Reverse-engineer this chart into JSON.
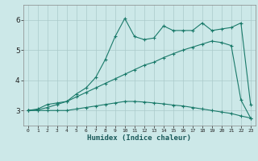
{
  "xlabel": "Humidex (Indice chaleur)",
  "bg_color": "#cce8e8",
  "line_color": "#1a7a6a",
  "grid_color": "#aacaca",
  "xlim": [
    -0.5,
    23.5
  ],
  "ylim": [
    2.5,
    6.5
  ],
  "yticks": [
    3,
    4,
    5,
    6
  ],
  "xticks": [
    0,
    1,
    2,
    3,
    4,
    5,
    6,
    7,
    8,
    9,
    10,
    11,
    12,
    13,
    14,
    15,
    16,
    17,
    18,
    19,
    20,
    21,
    22,
    23
  ],
  "series1_x": [
    0,
    1,
    2,
    3,
    4,
    5,
    6,
    7,
    8,
    9,
    10,
    11,
    12,
    13,
    14,
    15,
    16,
    17,
    18,
    19,
    20,
    21,
    22,
    23
  ],
  "series1_y": [
    3.0,
    3.05,
    3.2,
    3.25,
    3.3,
    3.55,
    3.75,
    4.1,
    4.7,
    5.45,
    6.05,
    5.45,
    5.35,
    5.4,
    5.8,
    5.65,
    5.65,
    5.65,
    5.9,
    5.65,
    5.7,
    5.75,
    5.9,
    3.2
  ],
  "series2_x": [
    0,
    1,
    2,
    3,
    4,
    5,
    6,
    7,
    8,
    9,
    10,
    11,
    12,
    13,
    14,
    15,
    16,
    17,
    18,
    19,
    20,
    21,
    22,
    23
  ],
  "series2_y": [
    3.0,
    3.02,
    3.1,
    3.2,
    3.3,
    3.45,
    3.6,
    3.75,
    3.9,
    4.05,
    4.2,
    4.35,
    4.5,
    4.6,
    4.75,
    4.88,
    5.0,
    5.1,
    5.2,
    5.3,
    5.25,
    5.15,
    3.35,
    2.75
  ],
  "series3_x": [
    0,
    1,
    2,
    3,
    4,
    5,
    6,
    7,
    8,
    9,
    10,
    11,
    12,
    13,
    14,
    15,
    16,
    17,
    18,
    19,
    20,
    21,
    22,
    23
  ],
  "series3_y": [
    3.0,
    3.0,
    3.0,
    3.0,
    3.0,
    3.05,
    3.1,
    3.15,
    3.2,
    3.25,
    3.3,
    3.3,
    3.28,
    3.25,
    3.22,
    3.18,
    3.15,
    3.1,
    3.05,
    3.0,
    2.95,
    2.9,
    2.82,
    2.75
  ]
}
